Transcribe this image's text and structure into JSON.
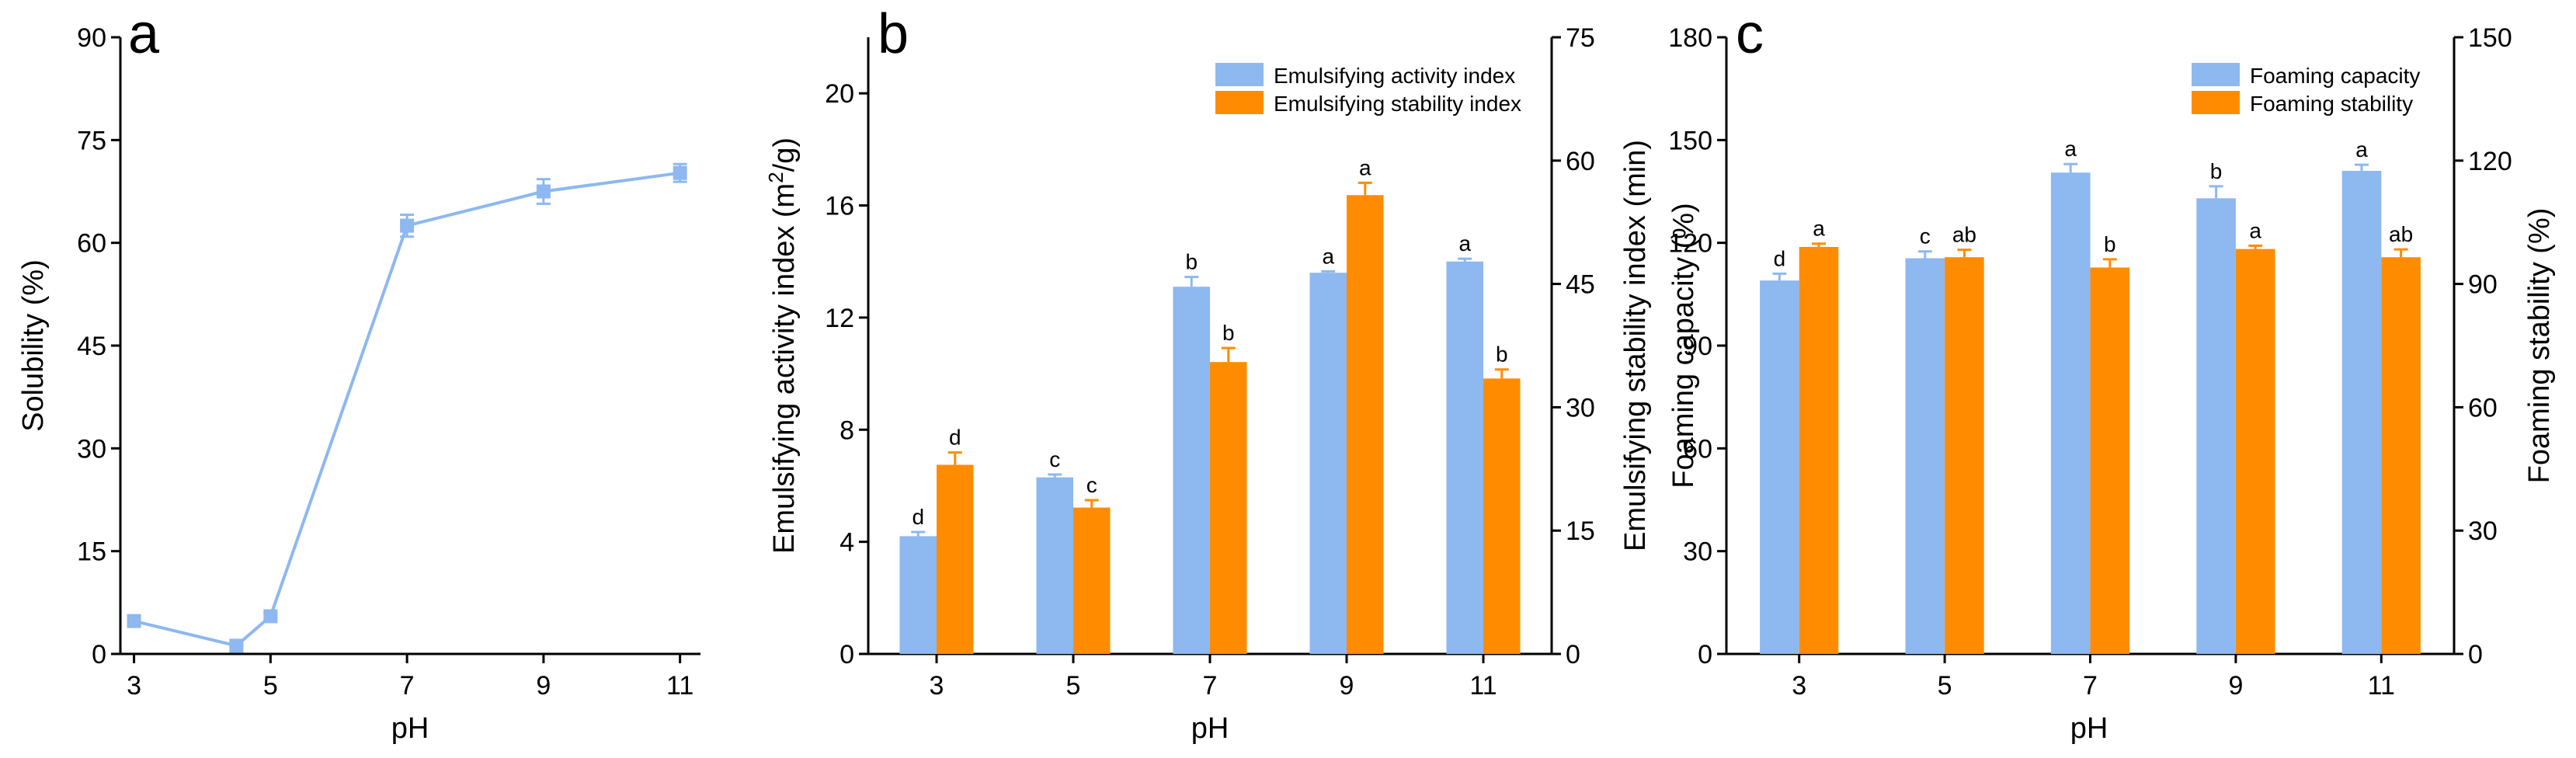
{
  "colors": {
    "blue": "#8DB8F0",
    "orange": "#FF8C00",
    "axis": "#000000"
  },
  "chart_data": [
    {
      "panel": "a",
      "type": "line",
      "x": [
        3,
        4.5,
        5,
        7,
        9,
        11
      ],
      "values": [
        4.8,
        1.2,
        5.5,
        62.5,
        67.5,
        70.2
      ],
      "errors": [
        0.3,
        0.3,
        0.5,
        1.6,
        1.8,
        1.3
      ],
      "xticks": [
        "3",
        "5",
        "7",
        "9",
        "11"
      ],
      "yticks": [
        "0",
        "15",
        "30",
        "45",
        "60",
        "75",
        "90"
      ],
      "xlim": [
        2.8,
        11.3
      ],
      "ylim": [
        0,
        90
      ],
      "xlabel": "pH",
      "ylabel": "Solubility (%)"
    },
    {
      "panel": "b",
      "type": "bar",
      "categories": [
        "3",
        "5",
        "7",
        "9",
        "11"
      ],
      "series": [
        {
          "name": "Emulsifying activity index",
          "axis": "left",
          "values": [
            4.2,
            6.3,
            13.1,
            13.6,
            14.0
          ],
          "errors": [
            0.15,
            0.1,
            0.35,
            0.05,
            0.1
          ],
          "letters": [
            "d",
            "c",
            "b",
            "a",
            "a"
          ]
        },
        {
          "name": "Emulsifying stability index",
          "axis": "right",
          "values": [
            23.0,
            17.8,
            35.5,
            55.8,
            33.5
          ],
          "errors": [
            1.5,
            0.9,
            1.7,
            1.5,
            1.1
          ],
          "letters": [
            "d",
            "c",
            "b",
            "a",
            "b"
          ]
        }
      ],
      "yticks_left": [
        "0",
        "4",
        "8",
        "12",
        "16",
        "20"
      ],
      "yticks_right": [
        "0",
        "15",
        "30",
        "45",
        "60",
        "75"
      ],
      "ylim_left": [
        0,
        22
      ],
      "ylim_right": [
        0,
        75
      ],
      "xlabel": "pH",
      "ylabel_left_pre": "Emulsifying activity index (m",
      "ylabel_left_sup": "2",
      "ylabel_left_post": "/g)",
      "ylabel_right": "Emulsifying stability index (min)"
    },
    {
      "panel": "c",
      "type": "bar",
      "categories": [
        "3",
        "5",
        "7",
        "9",
        "11"
      ],
      "series": [
        {
          "name": "Foaming capacity",
          "axis": "left",
          "values": [
            109,
            115.5,
            140.5,
            133,
            141
          ],
          "errors": [
            2.0,
            2.0,
            2.5,
            3.5,
            1.8
          ],
          "letters": [
            "d",
            "c",
            "a",
            "b",
            "a"
          ]
        },
        {
          "name": "Foaming stability",
          "axis": "right",
          "values": [
            99,
            96.5,
            94,
            98.5,
            96.5
          ],
          "errors": [
            0.8,
            1.8,
            2.0,
            0.8,
            1.9
          ],
          "letters": [
            "a",
            "ab",
            "b",
            "a",
            "ab"
          ]
        }
      ],
      "yticks_left": [
        "0",
        "30",
        "60",
        "90",
        "120",
        "150",
        "180"
      ],
      "yticks_right": [
        "0",
        "30",
        "60",
        "90",
        "120",
        "150"
      ],
      "ylim_left": [
        0,
        180
      ],
      "ylim_right": [
        0,
        150
      ],
      "xlabel": "pH",
      "ylabel_left": "Foaming capacity (%)",
      "ylabel_right": "Foaming stability (%)"
    }
  ]
}
